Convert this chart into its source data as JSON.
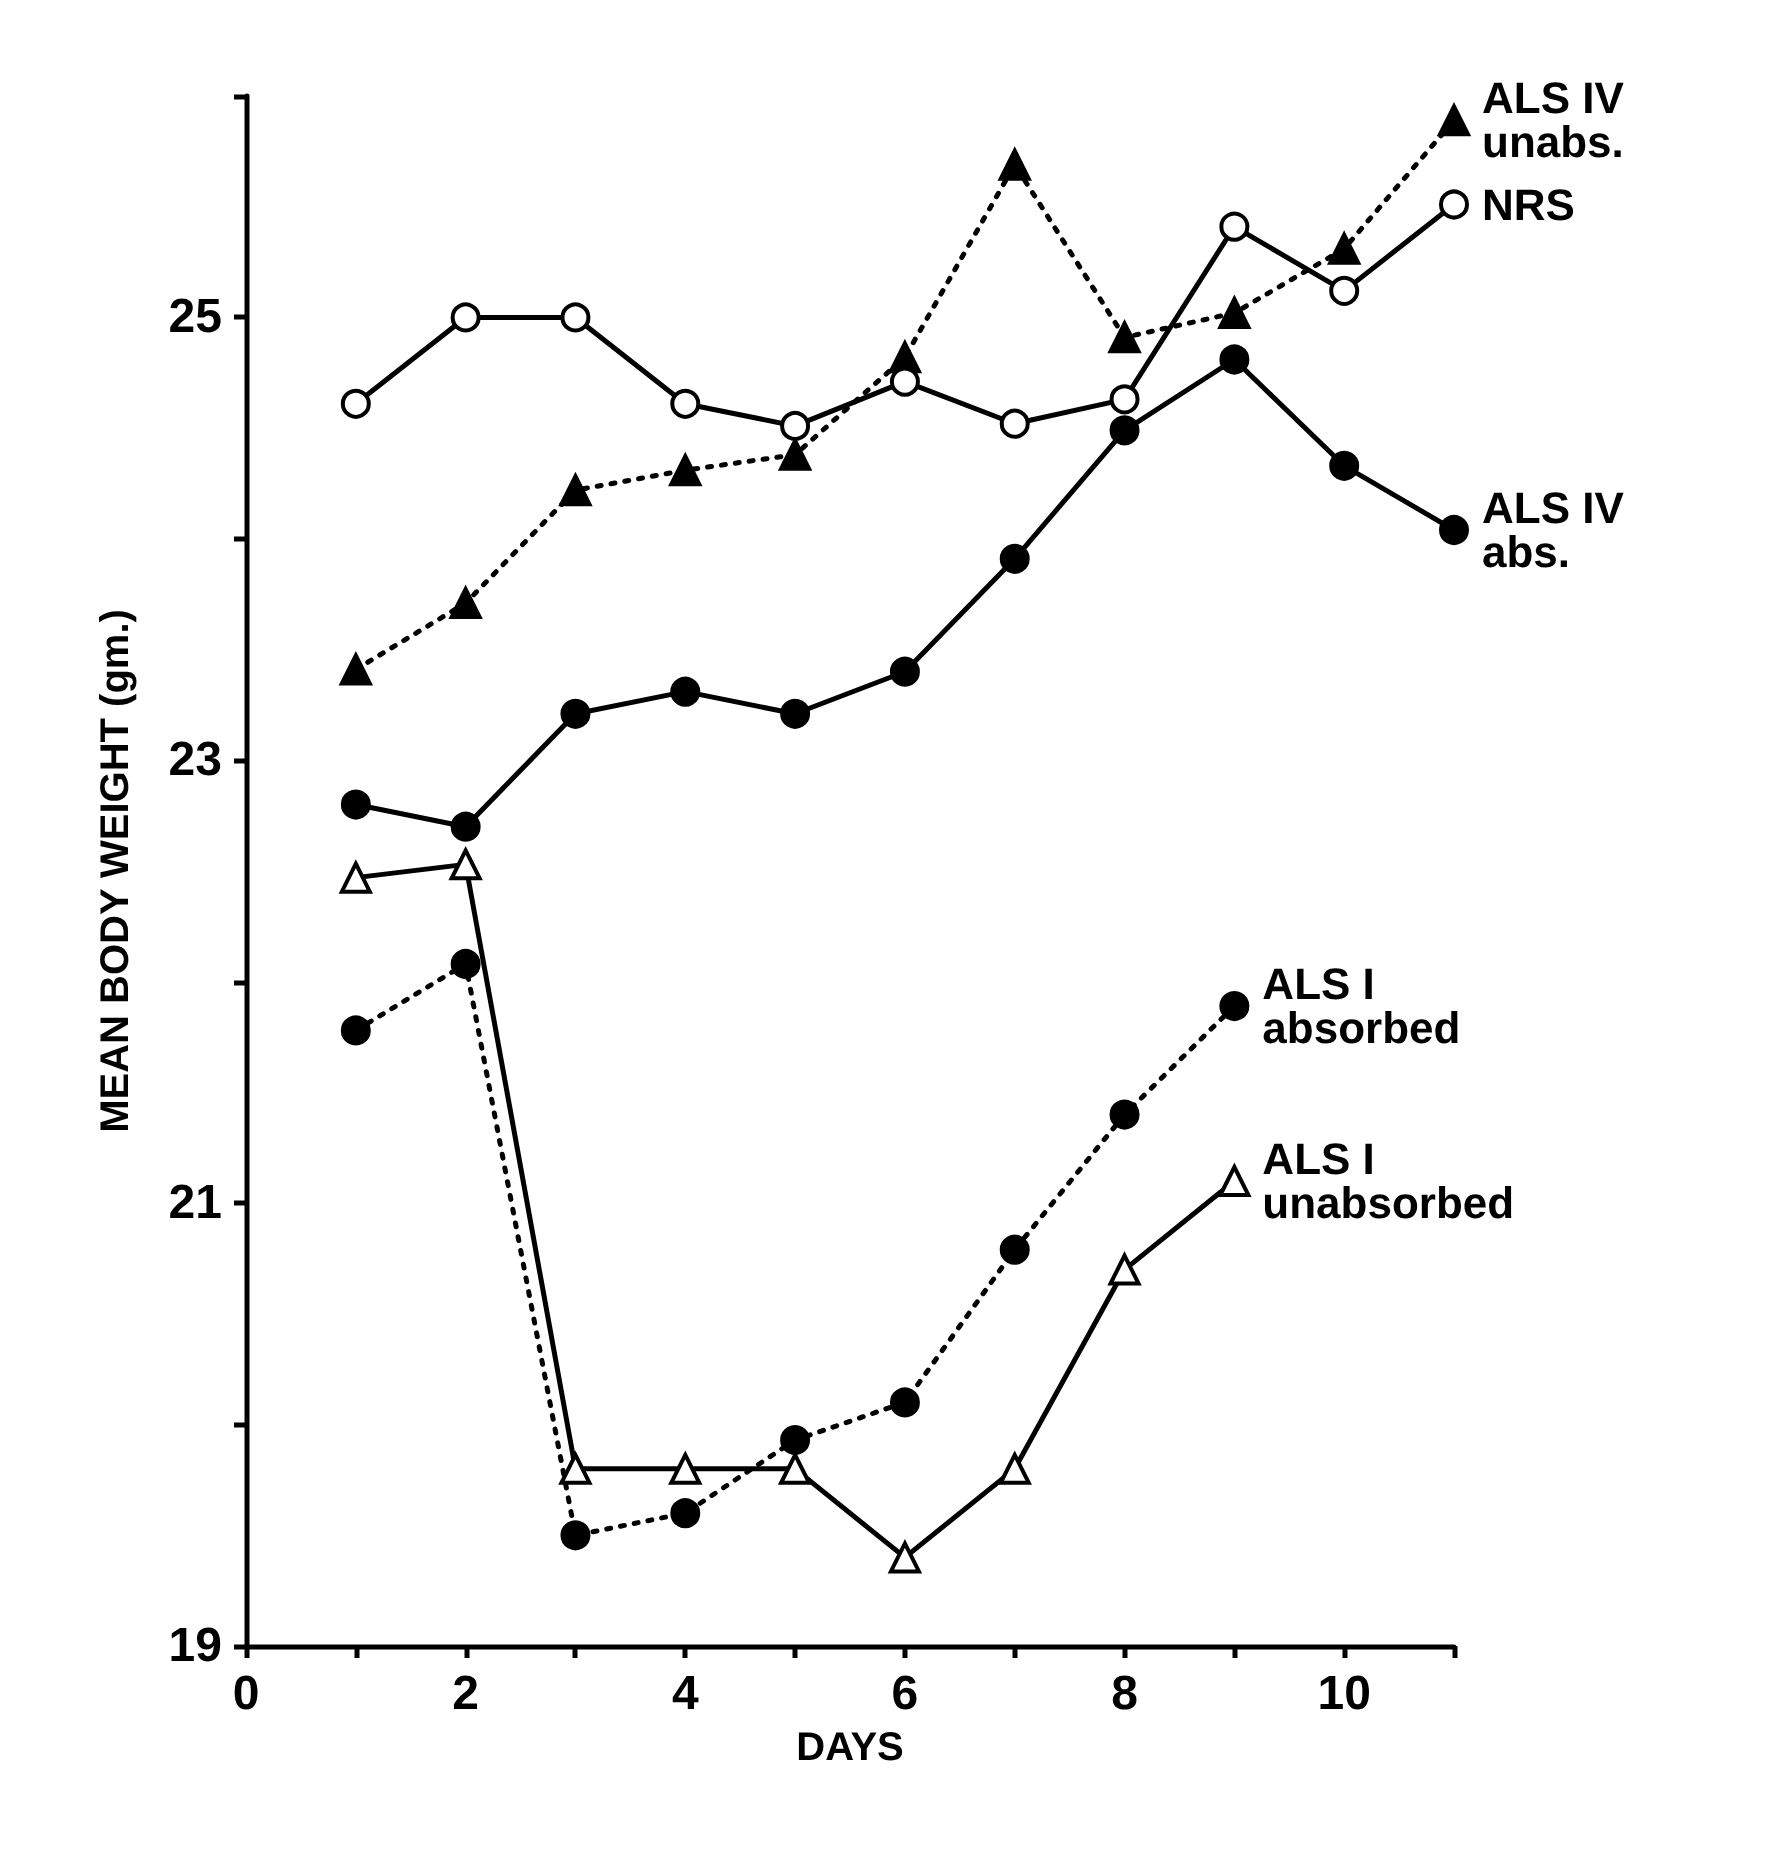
{
  "chart_data": {
    "type": "line",
    "xlabel": "DAYS",
    "ylabel": "MEAN BODY WEIGHT (gm.)",
    "xlim": [
      0,
      11
    ],
    "ylim": [
      19,
      26
    ],
    "xticks": [
      0,
      {
        "value": 1,
        "label": null
      },
      2,
      {
        "value": 3,
        "label": null
      },
      4,
      {
        "value": 5,
        "label": null
      },
      6,
      {
        "value": 7,
        "label": null
      },
      8,
      {
        "value": 9,
        "label": null
      },
      10,
      {
        "value": 11,
        "label": null
      }
    ],
    "yticks": [
      19,
      {
        "value": 20,
        "label": null
      },
      21,
      {
        "value": 22,
        "label": null
      },
      23,
      {
        "value": 24,
        "label": null
      },
      25,
      {
        "value": 26,
        "label": null
      }
    ],
    "grid": false,
    "legend": false,
    "series": [
      {
        "name": "ALS IV\nunabs.",
        "color": "#000000",
        "marker": "triangle",
        "line_style": "dotted",
        "x": [
          1,
          2,
          3,
          4,
          5,
          6,
          7,
          8,
          9,
          10,
          11
        ],
        "values": [
          23.41,
          23.71,
          24.22,
          24.31,
          24.38,
          24.82,
          25.69,
          24.91,
          25.02,
          25.31,
          25.89
        ]
      },
      {
        "name": "NRS",
        "color": "#000000",
        "marker": "circle-open",
        "line_style": "solid",
        "x": [
          1,
          2,
          3,
          4,
          5,
          6,
          7,
          8,
          9,
          10,
          11
        ],
        "values": [
          24.61,
          25.0,
          25.0,
          24.61,
          24.51,
          24.71,
          24.52,
          24.63,
          25.41,
          25.12,
          25.51
        ]
      },
      {
        "name": "ALS IV\nabs.",
        "color": "#000000",
        "marker": "circle",
        "line_style": "solid",
        "x": [
          1,
          2,
          3,
          4,
          5,
          6,
          7,
          8,
          9,
          10,
          11
        ],
        "values": [
          22.8,
          22.7,
          23.21,
          23.31,
          23.21,
          23.4,
          23.91,
          24.49,
          24.81,
          24.33,
          24.04
        ]
      },
      {
        "name": "ALS I\nabsorbed",
        "color": "#000000",
        "marker": "circle",
        "line_style": "dotted",
        "x": [
          1,
          2,
          3,
          4,
          5,
          6,
          7,
          8,
          9
        ],
        "values": [
          21.78,
          22.08,
          19.5,
          19.6,
          19.93,
          20.1,
          20.79,
          21.4,
          21.89
        ]
      },
      {
        "name": "ALS I\nunabsorbed",
        "color": "#000000",
        "marker": "triangle-open",
        "line_style": "solid",
        "x": [
          1,
          2,
          3,
          4,
          5,
          6,
          7,
          8,
          9
        ],
        "values": [
          22.47,
          22.53,
          19.8,
          19.8,
          19.8,
          19.4,
          19.8,
          20.7,
          21.1
        ]
      }
    ]
  }
}
